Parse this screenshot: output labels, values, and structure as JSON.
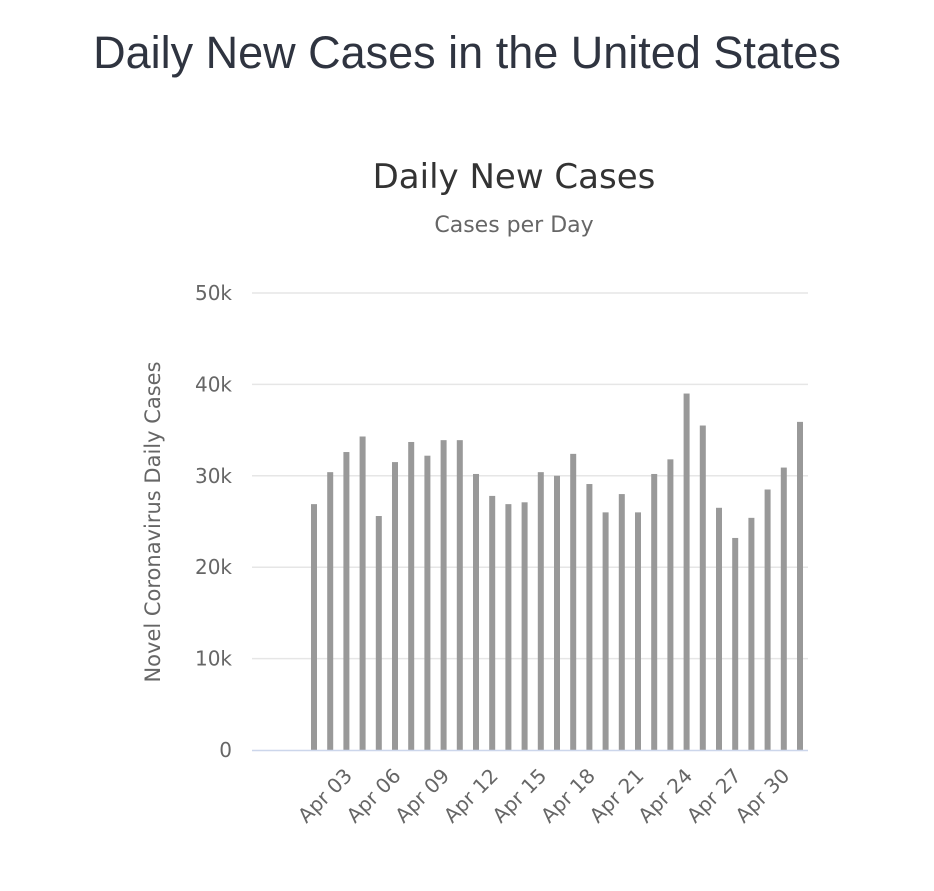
{
  "page": {
    "title": "Daily New Cases in the United States"
  },
  "chart_data": {
    "type": "bar",
    "title": "Daily New Cases",
    "subtitle": "Cases per Day",
    "xlabel": "",
    "ylabel": "Novel Coronavirus Daily Cases",
    "ylim": [
      0,
      50000
    ],
    "yticks": [
      0,
      10000,
      20000,
      30000,
      40000,
      50000
    ],
    "ytick_labels": [
      "0",
      "10k",
      "20k",
      "30k",
      "40k",
      "50k"
    ],
    "grid": true,
    "bar_color": "#999999",
    "grid_color": "#e6e6e6",
    "axis_color": "#ccd6eb",
    "categories": [
      "Apr 01",
      "Apr 02",
      "Apr 03",
      "Apr 04",
      "Apr 05",
      "Apr 06",
      "Apr 07",
      "Apr 08",
      "Apr 09",
      "Apr 10",
      "Apr 11",
      "Apr 12",
      "Apr 13",
      "Apr 14",
      "Apr 15",
      "Apr 16",
      "Apr 17",
      "Apr 18",
      "Apr 19",
      "Apr 20",
      "Apr 21",
      "Apr 22",
      "Apr 23",
      "Apr 24",
      "Apr 25",
      "Apr 26",
      "Apr 27",
      "Apr 28",
      "Apr 29",
      "Apr 30",
      "May 01"
    ],
    "visible_xtick_labels": [
      "Apr 03",
      "Apr 06",
      "Apr 09",
      "Apr 12",
      "Apr 15",
      "Apr 18",
      "Apr 21",
      "Apr 24",
      "Apr 27",
      "Apr 30"
    ],
    "values": [
      26900,
      30400,
      32600,
      34300,
      25600,
      31500,
      33700,
      32200,
      33900,
      33900,
      30200,
      27800,
      26900,
      27100,
      30400,
      30000,
      32400,
      29100,
      26000,
      28000,
      26000,
      30200,
      31800,
      39000,
      35500,
      26500,
      23200,
      25400,
      28500,
      30900,
      35900
    ]
  }
}
